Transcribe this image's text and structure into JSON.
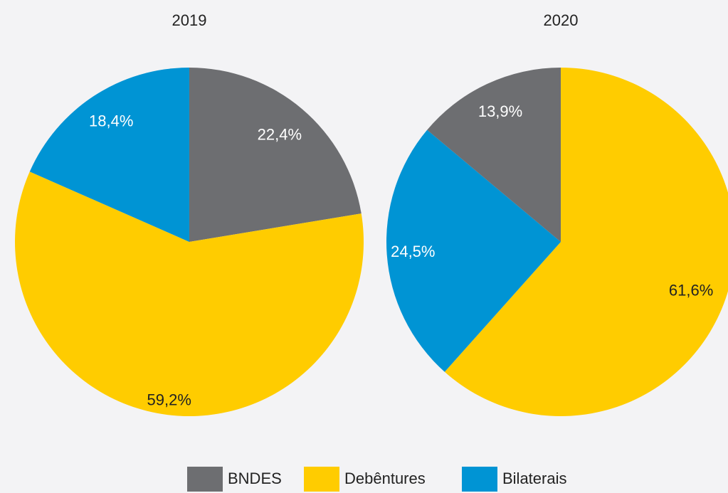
{
  "chart_data": [
    {
      "type": "pie",
      "title": "2019",
      "categories": [
        "BNDES",
        "Debêntures",
        "Bilaterais"
      ],
      "values": [
        22.4,
        59.2,
        18.4
      ],
      "value_labels": [
        "22,4%",
        "59,2%",
        "18,4%"
      ],
      "colors": [
        "#6d6e71",
        "#ffcc00",
        "#0094d4"
      ]
    },
    {
      "type": "pie",
      "title": "2020",
      "categories": [
        "Debêntures",
        "Bilaterais",
        "BNDES"
      ],
      "values": [
        61.6,
        24.5,
        13.9
      ],
      "value_labels": [
        "61,6%",
        "24,5%",
        "13,9%"
      ],
      "colors": [
        "#ffcc00",
        "#0094d4",
        "#6d6e71"
      ]
    }
  ]
}
